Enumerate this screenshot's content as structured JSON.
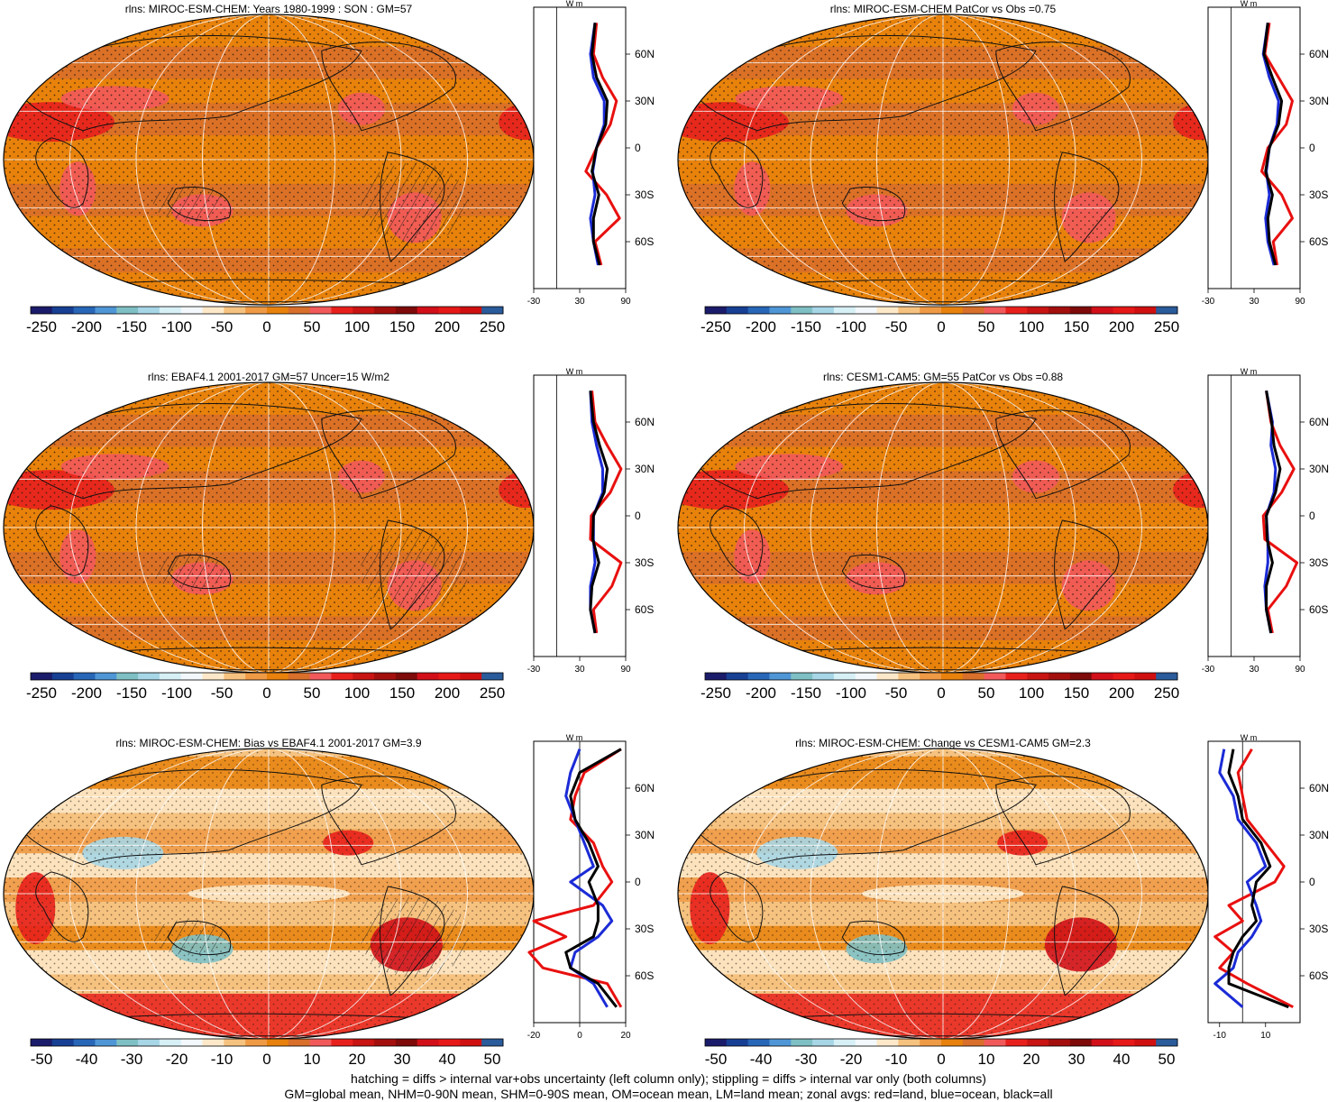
{
  "chart_data": [
    {
      "type": "heatmap",
      "title": "rlns: MIROC-ESM-CHEM: Years 1980-1999 : SON : GM=57",
      "colorbar_ticks": [
        "-250",
        "-200",
        "-150",
        "-100",
        "-50",
        "0",
        "50",
        "100",
        "150",
        "200",
        "250"
      ],
      "profile_unit": "W m-2",
      "profile_xticks": [
        "-30",
        "30",
        "90"
      ],
      "profile_xrange": [
        -30,
        90
      ],
      "lat_ticks": [
        "60N",
        "30N",
        "0",
        "30S",
        "60S"
      ],
      "zonal_mean": {
        "lat": [
          80,
          60,
          45,
          30,
          15,
          0,
          -15,
          -30,
          -45,
          -60,
          -75
        ],
        "land": [
          52,
          48,
          60,
          78,
          70,
          52,
          38,
          65,
          82,
          50,
          58
        ],
        "ocean": [
          50,
          44,
          48,
          62,
          62,
          52,
          47,
          50,
          44,
          48,
          54
        ],
        "all": [
          50,
          46,
          52,
          66,
          64,
          52,
          46,
          55,
          48,
          48,
          56
        ]
      }
    },
    {
      "type": "heatmap",
      "title": "rlns: MIROC-ESM-CHEM PatCor vs Obs =0.75",
      "colorbar_ticks": [
        "-250",
        "-200",
        "-150",
        "-100",
        "-50",
        "0",
        "50",
        "100",
        "150",
        "200",
        "250"
      ],
      "profile_unit": "W m-2",
      "profile_xticks": [
        "-30",
        "30",
        "90"
      ],
      "profile_xrange": [
        -30,
        90
      ],
      "lat_ticks": [
        "60N",
        "30N",
        "0",
        "30S",
        "60S"
      ],
      "zonal_mean": {
        "lat": [
          80,
          60,
          45,
          30,
          15,
          0,
          -15,
          -30,
          -45,
          -60,
          -75
        ],
        "land": [
          50,
          44,
          62,
          80,
          72,
          48,
          40,
          66,
          80,
          55,
          60
        ],
        "ocean": [
          48,
          42,
          50,
          62,
          60,
          50,
          46,
          50,
          45,
          48,
          56
        ],
        "all": [
          48,
          43,
          54,
          66,
          62,
          50,
          45,
          54,
          48,
          50,
          58
        ]
      }
    },
    {
      "type": "heatmap",
      "title": "rlns: EBAF4.1 2001-2017 GM=57 Uncer=15 W/m2",
      "colorbar_ticks": [
        "-250",
        "-200",
        "-150",
        "-100",
        "-50",
        "0",
        "50",
        "100",
        "150",
        "200",
        "250"
      ],
      "profile_unit": "W m-2",
      "profile_xticks": [
        "-30",
        "30",
        "90"
      ],
      "profile_xrange": [
        -30,
        90
      ],
      "lat_ticks": [
        "60N",
        "30N",
        "0",
        "30S",
        "60S"
      ],
      "zonal_mean": {
        "lat": [
          80,
          60,
          45,
          30,
          15,
          0,
          -15,
          -30,
          -45,
          -60,
          -75
        ],
        "land": [
          46,
          50,
          66,
          84,
          70,
          45,
          44,
          84,
          72,
          48,
          52
        ],
        "ocean": [
          44,
          46,
          52,
          60,
          60,
          48,
          48,
          50,
          44,
          44,
          50
        ],
        "all": [
          44,
          48,
          56,
          66,
          62,
          48,
          47,
          55,
          46,
          44,
          50
        ]
      }
    },
    {
      "type": "heatmap",
      "title": "rlns: CESM1-CAM5: GM=55 PatCor vs Obs =0.88",
      "colorbar_ticks": [
        "-250",
        "-200",
        "-150",
        "-100",
        "-50",
        "0",
        "50",
        "100",
        "150",
        "200",
        "250"
      ],
      "profile_unit": "W m-2",
      "profile_xticks": [
        "-30",
        "30",
        "90"
      ],
      "profile_xrange": [
        -30,
        90
      ],
      "lat_ticks": [
        "60N",
        "30N",
        "0",
        "30S",
        "60S"
      ],
      "zonal_mean": {
        "lat": [
          80,
          60,
          45,
          30,
          15,
          0,
          -15,
          -30,
          -45,
          -60,
          -75
        ],
        "land": [
          46,
          52,
          64,
          82,
          66,
          42,
          44,
          86,
          72,
          48,
          54
        ],
        "ocean": [
          46,
          54,
          52,
          58,
          56,
          46,
          48,
          48,
          44,
          46,
          52
        ],
        "all": [
          46,
          53,
          56,
          64,
          58,
          46,
          47,
          54,
          46,
          46,
          52
        ]
      }
    },
    {
      "type": "heatmap",
      "title": "rlns: MIROC-ESM-CHEM: Bias vs EBAF4.1 2001-2017  GM=3.9",
      "colorbar_ticks": [
        "-50",
        "-40",
        "-30",
        "-20",
        "-10",
        "0",
        "10",
        "20",
        "30",
        "40",
        "50"
      ],
      "profile_unit": "W m-2",
      "profile_xticks": [
        "-20",
        "0",
        "20"
      ],
      "profile_xrange": [
        -20,
        20
      ],
      "lat_ticks": [
        "60N",
        "30N",
        "0",
        "30S",
        "60S"
      ],
      "zonal_mean": {
        "lat": [
          85,
          70,
          55,
          40,
          25,
          10,
          0,
          -15,
          -25,
          -35,
          -45,
          -55,
          -65,
          -80
        ],
        "land": [
          18,
          2,
          -2,
          -4,
          6,
          10,
          14,
          6,
          -20,
          -6,
          -22,
          -16,
          12,
          18
        ],
        "ocean": [
          0,
          -4,
          -6,
          -2,
          2,
          6,
          -4,
          10,
          14,
          8,
          -2,
          -4,
          6,
          12
        ],
        "all": [
          18,
          0,
          -4,
          -2,
          4,
          8,
          4,
          8,
          8,
          6,
          -6,
          -4,
          8,
          16
        ]
      }
    },
    {
      "type": "heatmap",
      "title": "rlns: MIROC-ESM-CHEM: Change vs CESM1-CAM5 GM=2.3",
      "colorbar_ticks": [
        "-50",
        "-40",
        "-30",
        "-20",
        "-10",
        "0",
        "10",
        "20",
        "30",
        "40",
        "50"
      ],
      "profile_unit": "W m-2",
      "profile_xticks": [
        "-10",
        "10"
      ],
      "profile_xrange": [
        -15,
        25
      ],
      "lat_ticks": [
        "60N",
        "30N",
        "0",
        "30S",
        "60S"
      ],
      "zonal_mean": {
        "lat": [
          85,
          70,
          55,
          40,
          25,
          10,
          0,
          -15,
          -25,
          -35,
          -45,
          -55,
          -65,
          -80
        ],
        "land": [
          4,
          -2,
          0,
          2,
          10,
          18,
          14,
          -6,
          0,
          -12,
          -4,
          -10,
          2,
          22
        ],
        "ocean": [
          -8,
          -10,
          -4,
          -2,
          6,
          10,
          2,
          6,
          8,
          4,
          -2,
          -4,
          -12,
          0
        ],
        "all": [
          -4,
          -6,
          -2,
          0,
          8,
          12,
          6,
          4,
          6,
          0,
          -4,
          -6,
          -6,
          20
        ]
      }
    }
  ],
  "footnote": {
    "line1": "hatching = diffs > internal var+obs uncertainty (left column only); stippling = diffs > internal var only (both columns)",
    "line2": "GM=global mean, NHM=0-90N mean, SHM=0-90S mean, OM=ocean mean, LM=land mean; zonal avgs: red=land, blue=ocean, black=all"
  },
  "colors": {
    "land_line": "#e8100f",
    "ocean_line": "#1b2bd6",
    "all_line": "#000000",
    "palette": [
      "#1b1b6b",
      "#173f94",
      "#2866b8",
      "#4f96d6",
      "#7fc0c4",
      "#a7d6e6",
      "#d6f0f6",
      "#f2f8fb",
      "#fde9c9",
      "#f6c27f",
      "#ef9a45",
      "#e8820c",
      "#d86f2b",
      "#f2595a",
      "#e8201c",
      "#c81412",
      "#a30f0d",
      "#7e0a09",
      "#d20f18",
      "#e61818",
      "#d01010",
      "#2a5b9a"
    ]
  }
}
